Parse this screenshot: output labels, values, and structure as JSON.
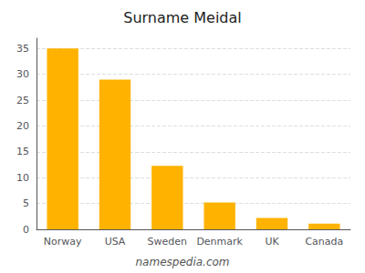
{
  "chart_data": {
    "type": "bar",
    "title": "Surname Meidal",
    "categories": [
      "Norway",
      "USA",
      "Sweden",
      "Denmark",
      "UK",
      "Canada"
    ],
    "values": [
      35,
      29,
      12.3,
      5.2,
      2.2,
      1.1
    ],
    "color": "#FFB300",
    "ylim": [
      0,
      37
    ],
    "yticks": [
      0,
      5,
      10,
      15,
      20,
      25,
      30,
      35
    ],
    "grid": true,
    "annotations": [
      "namespedia.com"
    ]
  }
}
